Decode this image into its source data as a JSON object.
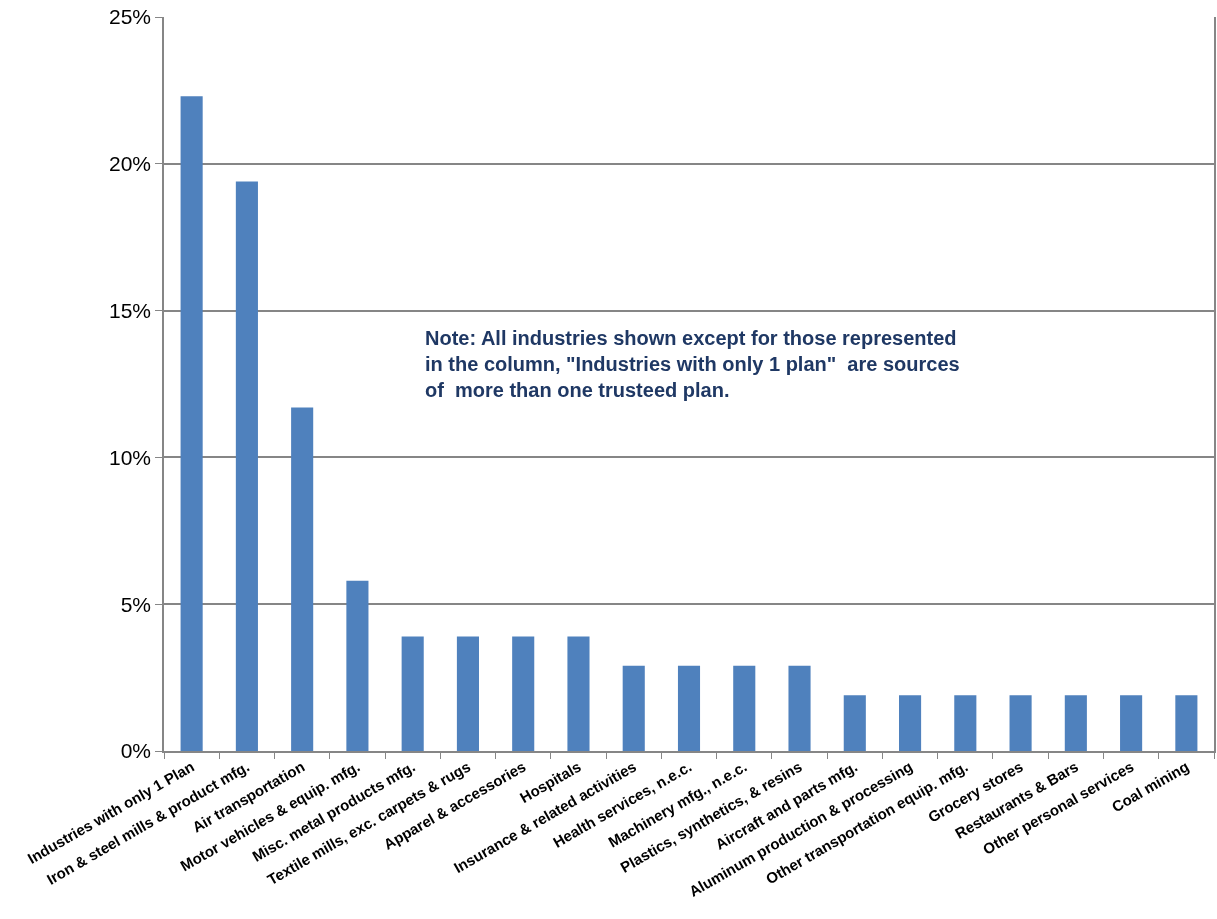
{
  "chart_data": {
    "type": "bar",
    "categories": [
      "Industries with only 1 Plan",
      "Iron & steel mills & product mfg.",
      "Air transportation",
      "Motor vehicles & equip. mfg.",
      "Misc. metal products mfg.",
      "Textile mills, exc. carpets & rugs",
      "Apparel & accessories",
      "Hospitals",
      "Insurance & related activities",
      "Health services, n.e.c.",
      "Machinery mfg., n.e.c.",
      "Plastics, synthetics, & resins",
      "Aircraft and parts mfg.",
      "Aluminum production & processing",
      "Other transportation equip. mfg.",
      "Grocery stores",
      "Restaurants & Bars",
      "Other personal services",
      "Coal mining"
    ],
    "values": [
      22.3,
      19.4,
      11.7,
      5.8,
      3.9,
      3.9,
      3.9,
      3.9,
      2.9,
      2.9,
      2.9,
      2.9,
      1.9,
      1.9,
      1.9,
      1.9,
      1.9,
      1.9,
      1.9
    ],
    "color": "#4f81bd",
    "ylim": [
      0,
      25
    ],
    "yticks": [
      {
        "value": 0,
        "label": "0%"
      },
      {
        "value": 5,
        "label": "5%"
      },
      {
        "value": 10,
        "label": "10%"
      },
      {
        "value": 15,
        "label": "15%"
      },
      {
        "value": 20,
        "label": "20%"
      },
      {
        "value": 25,
        "label": "25%"
      }
    ],
    "grid": "y",
    "annotations": [
      "Note: All industries shown except for those represented\nin the column, \"Industries with only 1 plan\"  are sources\nof  more than one trusteed plan."
    ]
  }
}
